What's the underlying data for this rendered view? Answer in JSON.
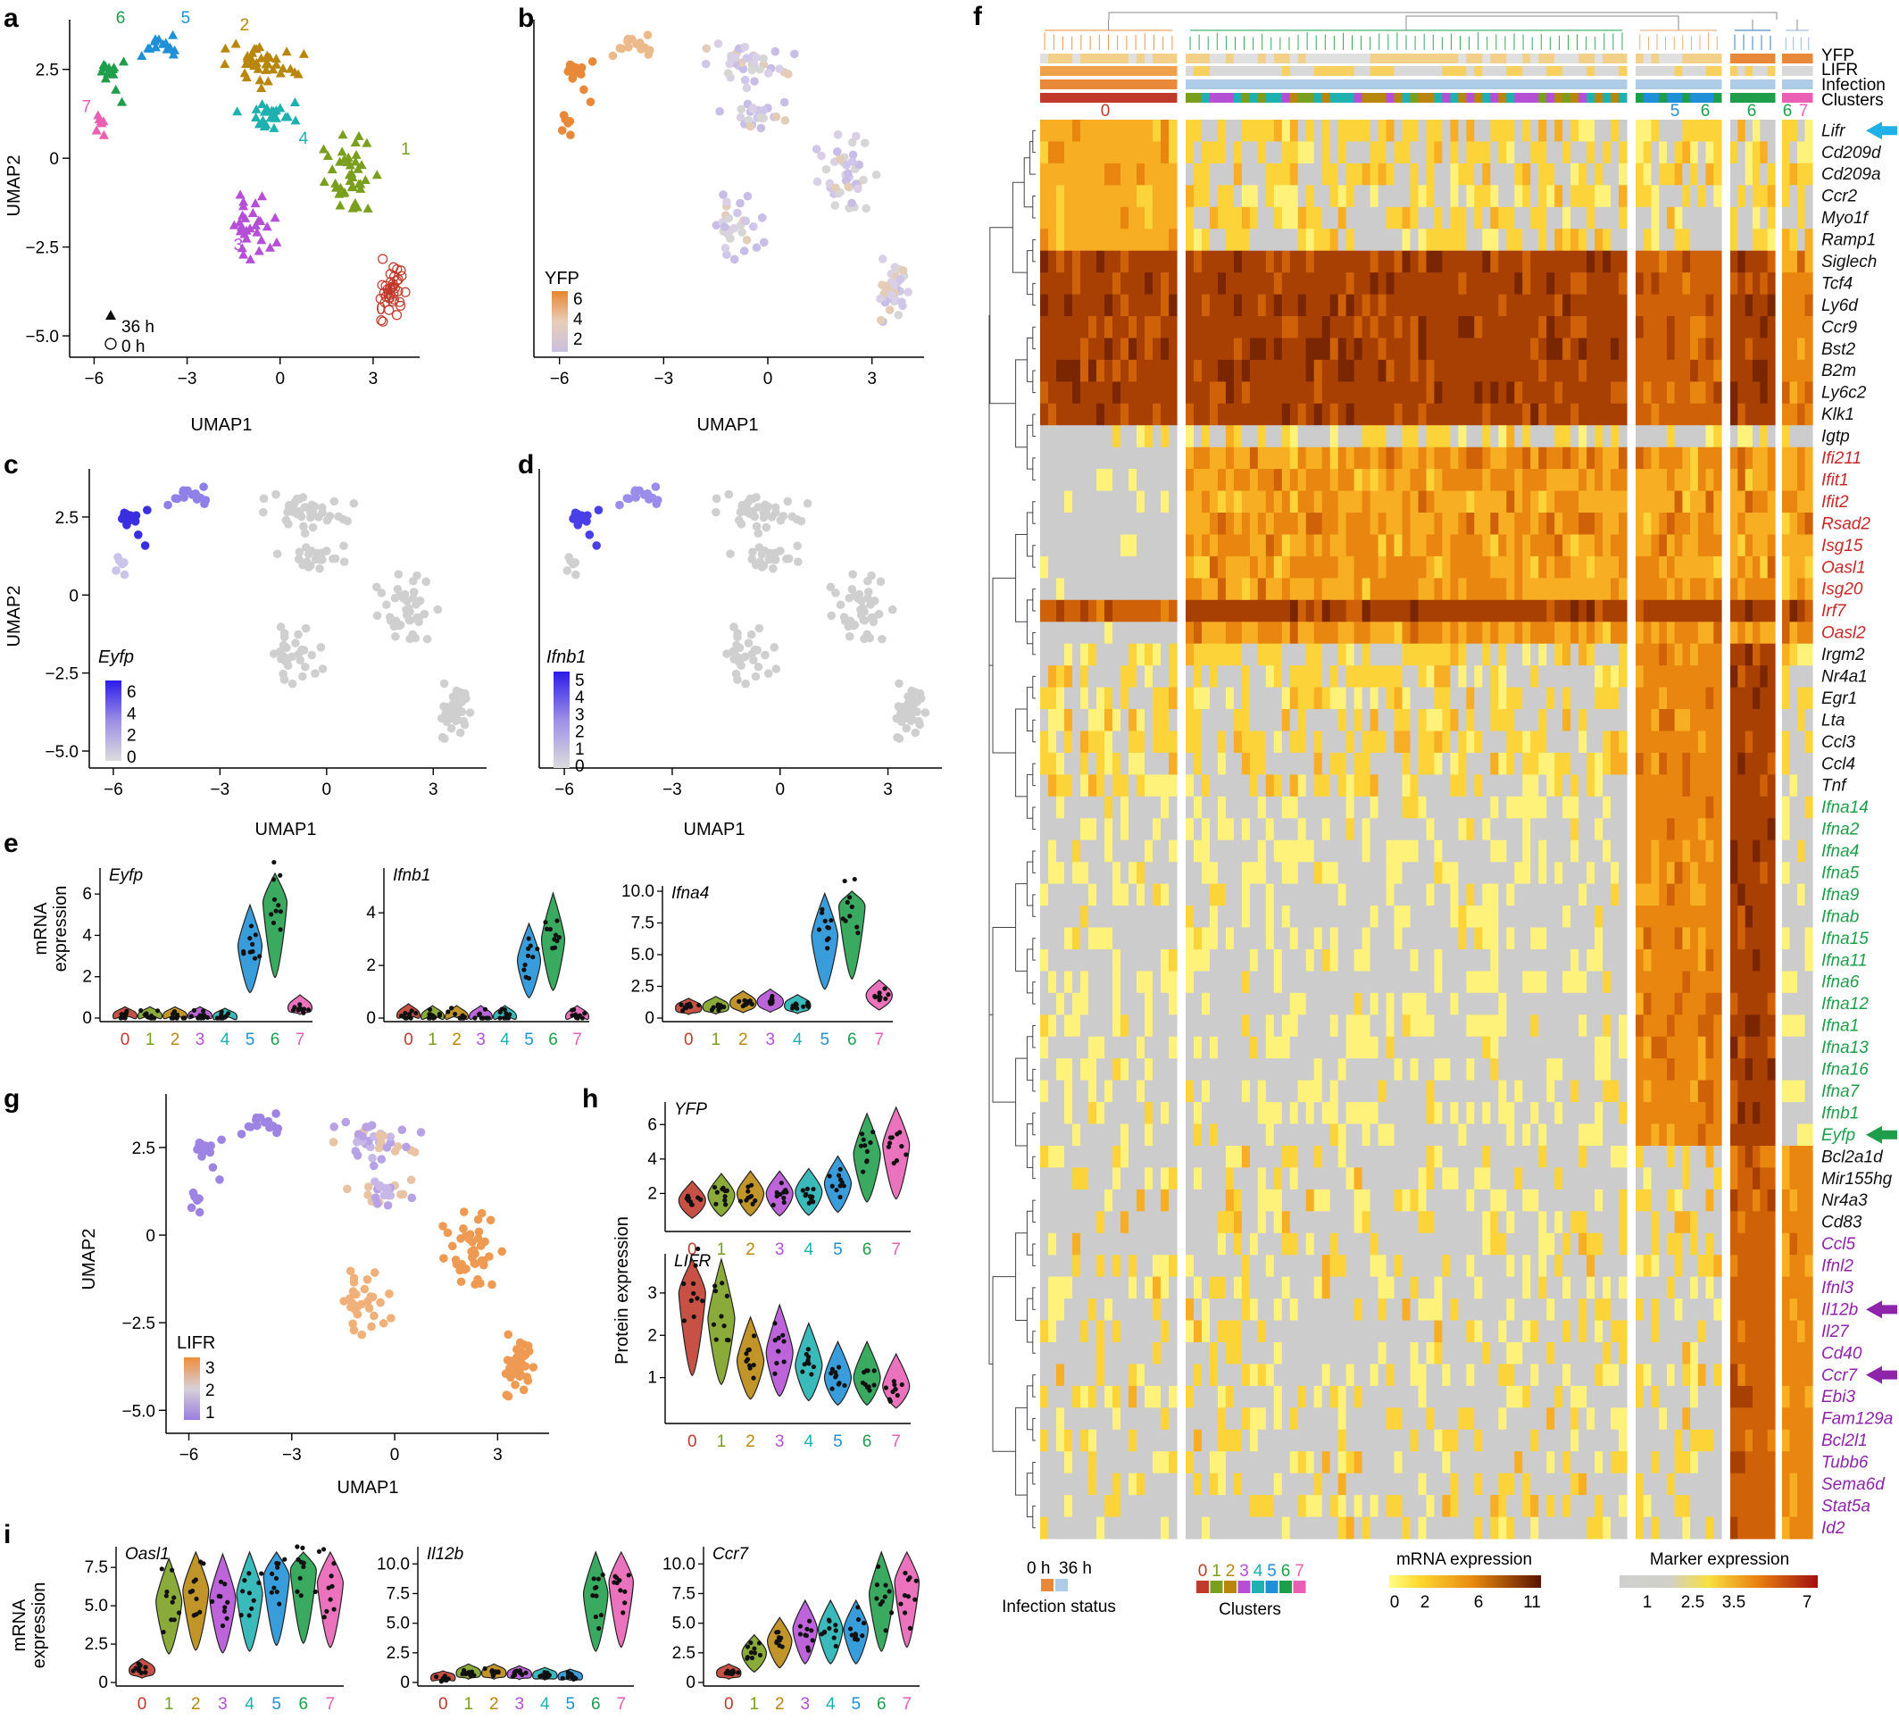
{
  "panels": {
    "a": {
      "label": "a",
      "xlabel": "UMAP1",
      "ylabel": "UMAP2",
      "xticks": [
        "−6",
        "−3",
        "0",
        "3"
      ],
      "yticks": [
        "2.5",
        "0",
        "−2.5",
        "−5.0"
      ],
      "legend": [
        "36 h",
        "0 h"
      ],
      "cluster_labels": [
        {
          "t": "0",
          "c": "#c0392b"
        },
        {
          "t": "1",
          "c": "#7a9e1e"
        },
        {
          "t": "2",
          "c": "#b8860b"
        },
        {
          "t": "3",
          "c": "#b44fd6"
        },
        {
          "t": "4",
          "c": "#1fb0b0"
        },
        {
          "t": "5",
          "c": "#1f8fd6"
        },
        {
          "t": "6",
          "c": "#1e9e4a"
        },
        {
          "t": "7",
          "c": "#e85fb3"
        }
      ]
    },
    "b": {
      "label": "b",
      "xlabel": "UMAP1",
      "xticks": [
        "−6",
        "−3",
        "0",
        "3"
      ],
      "legend_title": "YFP",
      "legend_ticks": [
        "6",
        "4",
        "2"
      ]
    },
    "c": {
      "label": "c",
      "xlabel": "UMAP1",
      "ylabel": "UMAP2",
      "xticks": [
        "−6",
        "−3",
        "0",
        "3"
      ],
      "yticks": [
        "2.5",
        "0",
        "−2.5",
        "−5.0"
      ],
      "legend_title": "Eyfp",
      "legend_ticks": [
        "6",
        "4",
        "2",
        "0"
      ]
    },
    "d": {
      "label": "d",
      "xlabel": "UMAP1",
      "xticks": [
        "−6",
        "−3",
        "0",
        "3"
      ],
      "legend_title": "Ifnb1",
      "legend_ticks": [
        "5",
        "4",
        "3",
        "2",
        "1",
        "0"
      ]
    },
    "e": {
      "label": "e",
      "ylabel": "mRNA expression",
      "plots": [
        {
          "title": "Eyfp",
          "yticks": [
            "6",
            "4",
            "2",
            "0"
          ]
        },
        {
          "title": "Ifnb1",
          "yticks": [
            "4",
            "2",
            "0"
          ]
        },
        {
          "title": "Ifna4",
          "yticks": [
            "10.0",
            "7.5",
            "5.0",
            "2.5",
            "0"
          ]
        }
      ]
    },
    "g": {
      "label": "g",
      "xlabel": "UMAP1",
      "ylabel": "UMAP2",
      "xticks": [
        "−6",
        "−3",
        "0",
        "3"
      ],
      "yticks": [
        "2.5",
        "0",
        "−2.5",
        "−5.0"
      ],
      "legend_title": "LIFR",
      "legend_ticks": [
        "3",
        "2",
        "1"
      ]
    },
    "h": {
      "label": "h",
      "ylabel": "Protein expression",
      "plots": [
        {
          "title": "YFP",
          "yticks": [
            "6",
            "4",
            "2"
          ]
        },
        {
          "title": "LIFR",
          "yticks": [
            "3",
            "2",
            "1"
          ]
        }
      ]
    },
    "i": {
      "label": "i",
      "ylabel": "mRNA expression",
      "plots": [
        {
          "title": "Oasl1",
          "yticks": [
            "7.5",
            "5.0",
            "2.5",
            "0"
          ]
        },
        {
          "title": "Il12b",
          "yticks": [
            "10.0",
            "7.5",
            "5.0",
            "2.5",
            "0"
          ]
        },
        {
          "title": "Ccr7",
          "yticks": [
            "10.0",
            "7.5",
            "5.0",
            "2.5",
            "0"
          ]
        }
      ]
    },
    "f": {
      "label": "f",
      "annotation_rows": [
        "YFP",
        "LIFR",
        "Infection",
        "Clusters"
      ],
      "top_cluster_labels": [
        "0",
        "5",
        "6",
        "6",
        "6",
        "7"
      ],
      "legend_infection": {
        "title": "Infection status",
        "items": [
          "0 h",
          "36 h"
        ]
      },
      "legend_clusters": {
        "title": "Clusters",
        "items": [
          "0",
          "1",
          "2",
          "3",
          "4",
          "5",
          "6",
          "7"
        ]
      },
      "legend_mrna": {
        "title": "mRNA expression",
        "ticks": [
          "0",
          "2",
          "6",
          "11"
        ]
      },
      "legend_marker": {
        "title": "Marker expression",
        "ticks": [
          "1",
          "2.5",
          "3.5",
          "7"
        ]
      }
    }
  },
  "colors": {
    "clusters": [
      "#c0392b",
      "#7a9e1e",
      "#b8860b",
      "#b44fd6",
      "#1fb0b0",
      "#1f8fd6",
      "#1e9e4a",
      "#e85fb3"
    ],
    "orange": "#e8893a",
    "purple": "#8c6fd6",
    "blue": "#3a2fe0",
    "grey": "#c8c8c8",
    "arrow_blue": "#1fb0e8",
    "arrow_green": "#1e9e4a",
    "arrow_purple": "#8e24aa"
  },
  "chart_data": [
    {
      "type": "scatter",
      "panel": "a",
      "x_range": [
        -6,
        4
      ],
      "y_range": [
        -5,
        3.7
      ],
      "series": [
        {
          "name": "36 h",
          "marker": "triangle"
        },
        {
          "name": "0 h",
          "marker": "open-circle"
        }
      ]
    },
    {
      "type": "scatter",
      "panel": "b",
      "color_by": "YFP"
    },
    {
      "type": "scatter",
      "panel": "c",
      "color_by": "Eyfp"
    },
    {
      "type": "scatter",
      "panel": "d",
      "color_by": "Ifnb1"
    },
    {
      "type": "scatter",
      "panel": "g",
      "color_by": "LIFR"
    },
    {
      "type": "violin",
      "panel": "e",
      "categories": [
        "0",
        "1",
        "2",
        "3",
        "4",
        "5",
        "6",
        "7"
      ],
      "series": [
        {
          "name": "Eyfp",
          "values": [
            0.1,
            0.1,
            0.1,
            0.1,
            0.05,
            3.5,
            5.6,
            0.5
          ]
        },
        {
          "name": "Ifnb1",
          "values": [
            0.1,
            0.05,
            0.05,
            0.05,
            0.05,
            2.2,
            3.0,
            0.05
          ]
        },
        {
          "name": "Ifna4",
          "values": [
            0.8,
            0.9,
            1.2,
            1.3,
            1.0,
            6.5,
            8.8,
            1.8
          ]
        }
      ]
    },
    {
      "type": "violin",
      "panel": "h",
      "categories": [
        "0",
        "1",
        "2",
        "3",
        "4",
        "5",
        "6",
        "7"
      ],
      "series": [
        {
          "name": "YFP",
          "values": [
            1.6,
            1.9,
            2.0,
            2.0,
            2.1,
            2.6,
            4.3,
            4.8
          ]
        },
        {
          "name": "LIFR",
          "values": [
            3.0,
            2.4,
            1.4,
            1.6,
            1.3,
            1.0,
            1.0,
            0.8
          ]
        }
      ]
    },
    {
      "type": "violin",
      "panel": "i",
      "categories": [
        "0",
        "1",
        "2",
        "3",
        "4",
        "5",
        "6",
        "7"
      ],
      "series": [
        {
          "name": "Oasl1",
          "values": [
            0.8,
            5.3,
            6.0,
            5.5,
            5.8,
            6.9,
            7.3,
            6.5
          ]
        },
        {
          "name": "Il12b",
          "values": [
            0.4,
            0.8,
            0.8,
            0.7,
            0.6,
            0.5,
            7.5,
            8.5
          ]
        },
        {
          "name": "Ccr7",
          "values": [
            0.8,
            2.5,
            3.5,
            4.5,
            4.5,
            4.5,
            7.5,
            8.5
          ]
        }
      ]
    },
    {
      "type": "heatmap",
      "panel": "f",
      "genes": [
        {
          "n": "Lifr",
          "c": "#111111"
        },
        {
          "n": "Cd209d",
          "c": "#111111"
        },
        {
          "n": "Cd209a",
          "c": "#111111"
        },
        {
          "n": "Ccr2",
          "c": "#111111"
        },
        {
          "n": "Myo1f",
          "c": "#111111"
        },
        {
          "n": "Ramp1",
          "c": "#111111"
        },
        {
          "n": "Siglech",
          "c": "#111111"
        },
        {
          "n": "Tcf4",
          "c": "#111111"
        },
        {
          "n": "Ly6d",
          "c": "#111111"
        },
        {
          "n": "Ccr9",
          "c": "#111111"
        },
        {
          "n": "Bst2",
          "c": "#111111"
        },
        {
          "n": "B2m",
          "c": "#111111"
        },
        {
          "n": "Ly6c2",
          "c": "#111111"
        },
        {
          "n": "Klk1",
          "c": "#111111"
        },
        {
          "n": "Igtp",
          "c": "#111111"
        },
        {
          "n": "Ifi211",
          "c": "#c62828"
        },
        {
          "n": "Ifit1",
          "c": "#c62828"
        },
        {
          "n": "Ifit2",
          "c": "#c62828"
        },
        {
          "n": "Rsad2",
          "c": "#c62828"
        },
        {
          "n": "Isg15",
          "c": "#c62828"
        },
        {
          "n": "Oasl1",
          "c": "#c62828"
        },
        {
          "n": "Isg20",
          "c": "#c62828"
        },
        {
          "n": "Irf7",
          "c": "#c62828"
        },
        {
          "n": "Oasl2",
          "c": "#c62828"
        },
        {
          "n": "Irgm2",
          "c": "#111111"
        },
        {
          "n": "Nr4a1",
          "c": "#111111"
        },
        {
          "n": "Egr1",
          "c": "#111111"
        },
        {
          "n": "Lta",
          "c": "#111111"
        },
        {
          "n": "Ccl3",
          "c": "#111111"
        },
        {
          "n": "Ccl4",
          "c": "#111111"
        },
        {
          "n": "Tnf",
          "c": "#111111"
        },
        {
          "n": "Ifna14",
          "c": "#1e9e4a"
        },
        {
          "n": "Ifna2",
          "c": "#1e9e4a"
        },
        {
          "n": "Ifna4",
          "c": "#1e9e4a"
        },
        {
          "n": "Ifna5",
          "c": "#1e9e4a"
        },
        {
          "n": "Ifna9",
          "c": "#1e9e4a"
        },
        {
          "n": "Ifnab",
          "c": "#1e9e4a"
        },
        {
          "n": "Ifna15",
          "c": "#1e9e4a"
        },
        {
          "n": "Ifna11",
          "c": "#1e9e4a"
        },
        {
          "n": "Ifna6",
          "c": "#1e9e4a"
        },
        {
          "n": "Ifna12",
          "c": "#1e9e4a"
        },
        {
          "n": "Ifna1",
          "c": "#1e9e4a"
        },
        {
          "n": "Ifna13",
          "c": "#1e9e4a"
        },
        {
          "n": "Ifna16",
          "c": "#1e9e4a"
        },
        {
          "n": "Ifna7",
          "c": "#1e9e4a"
        },
        {
          "n": "Ifnb1",
          "c": "#1e9e4a"
        },
        {
          "n": "Eyfp",
          "c": "#1e9e4a"
        },
        {
          "n": "Bcl2a1d",
          "c": "#111111"
        },
        {
          "n": "Mir155hg",
          "c": "#111111"
        },
        {
          "n": "Nr4a3",
          "c": "#111111"
        },
        {
          "n": "Cd83",
          "c": "#111111"
        },
        {
          "n": "Ccl5",
          "c": "#8e24aa"
        },
        {
          "n": "Ifnl2",
          "c": "#8e24aa"
        },
        {
          "n": "Ifnl3",
          "c": "#8e24aa"
        },
        {
          "n": "Il12b",
          "c": "#8e24aa"
        },
        {
          "n": "Il27",
          "c": "#8e24aa"
        },
        {
          "n": "Cd40",
          "c": "#8e24aa"
        },
        {
          "n": "Ccr7",
          "c": "#8e24aa"
        },
        {
          "n": "Ebi3",
          "c": "#8e24aa"
        },
        {
          "n": "Fam129a",
          "c": "#8e24aa"
        },
        {
          "n": "Bcl2l1",
          "c": "#8e24aa"
        },
        {
          "n": "Tubb6",
          "c": "#8e24aa"
        },
        {
          "n": "Sema6d",
          "c": "#8e24aa"
        },
        {
          "n": "Stat5a",
          "c": "#8e24aa"
        },
        {
          "n": "Id2",
          "c": "#8e24aa"
        }
      ],
      "arrows": [
        "Lifr",
        "Eyfp",
        "Il12b",
        "Ccr7"
      ]
    }
  ]
}
